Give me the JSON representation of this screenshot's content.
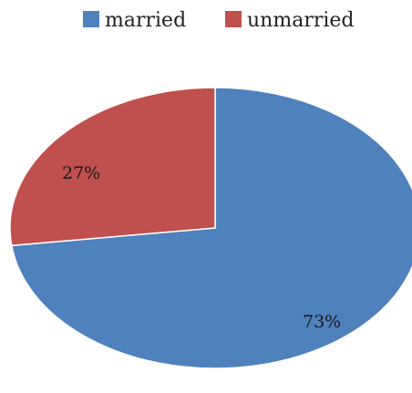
{
  "chart_data": {
    "type": "pie",
    "categories": [
      "married",
      "unmarried"
    ],
    "values": [
      73,
      27
    ],
    "data_labels": [
      "73%",
      "27%"
    ],
    "colors": [
      "#4f81bd",
      "#c0504d"
    ],
    "legend_position": "top",
    "title": "",
    "xlabel": "",
    "ylabel": ""
  }
}
